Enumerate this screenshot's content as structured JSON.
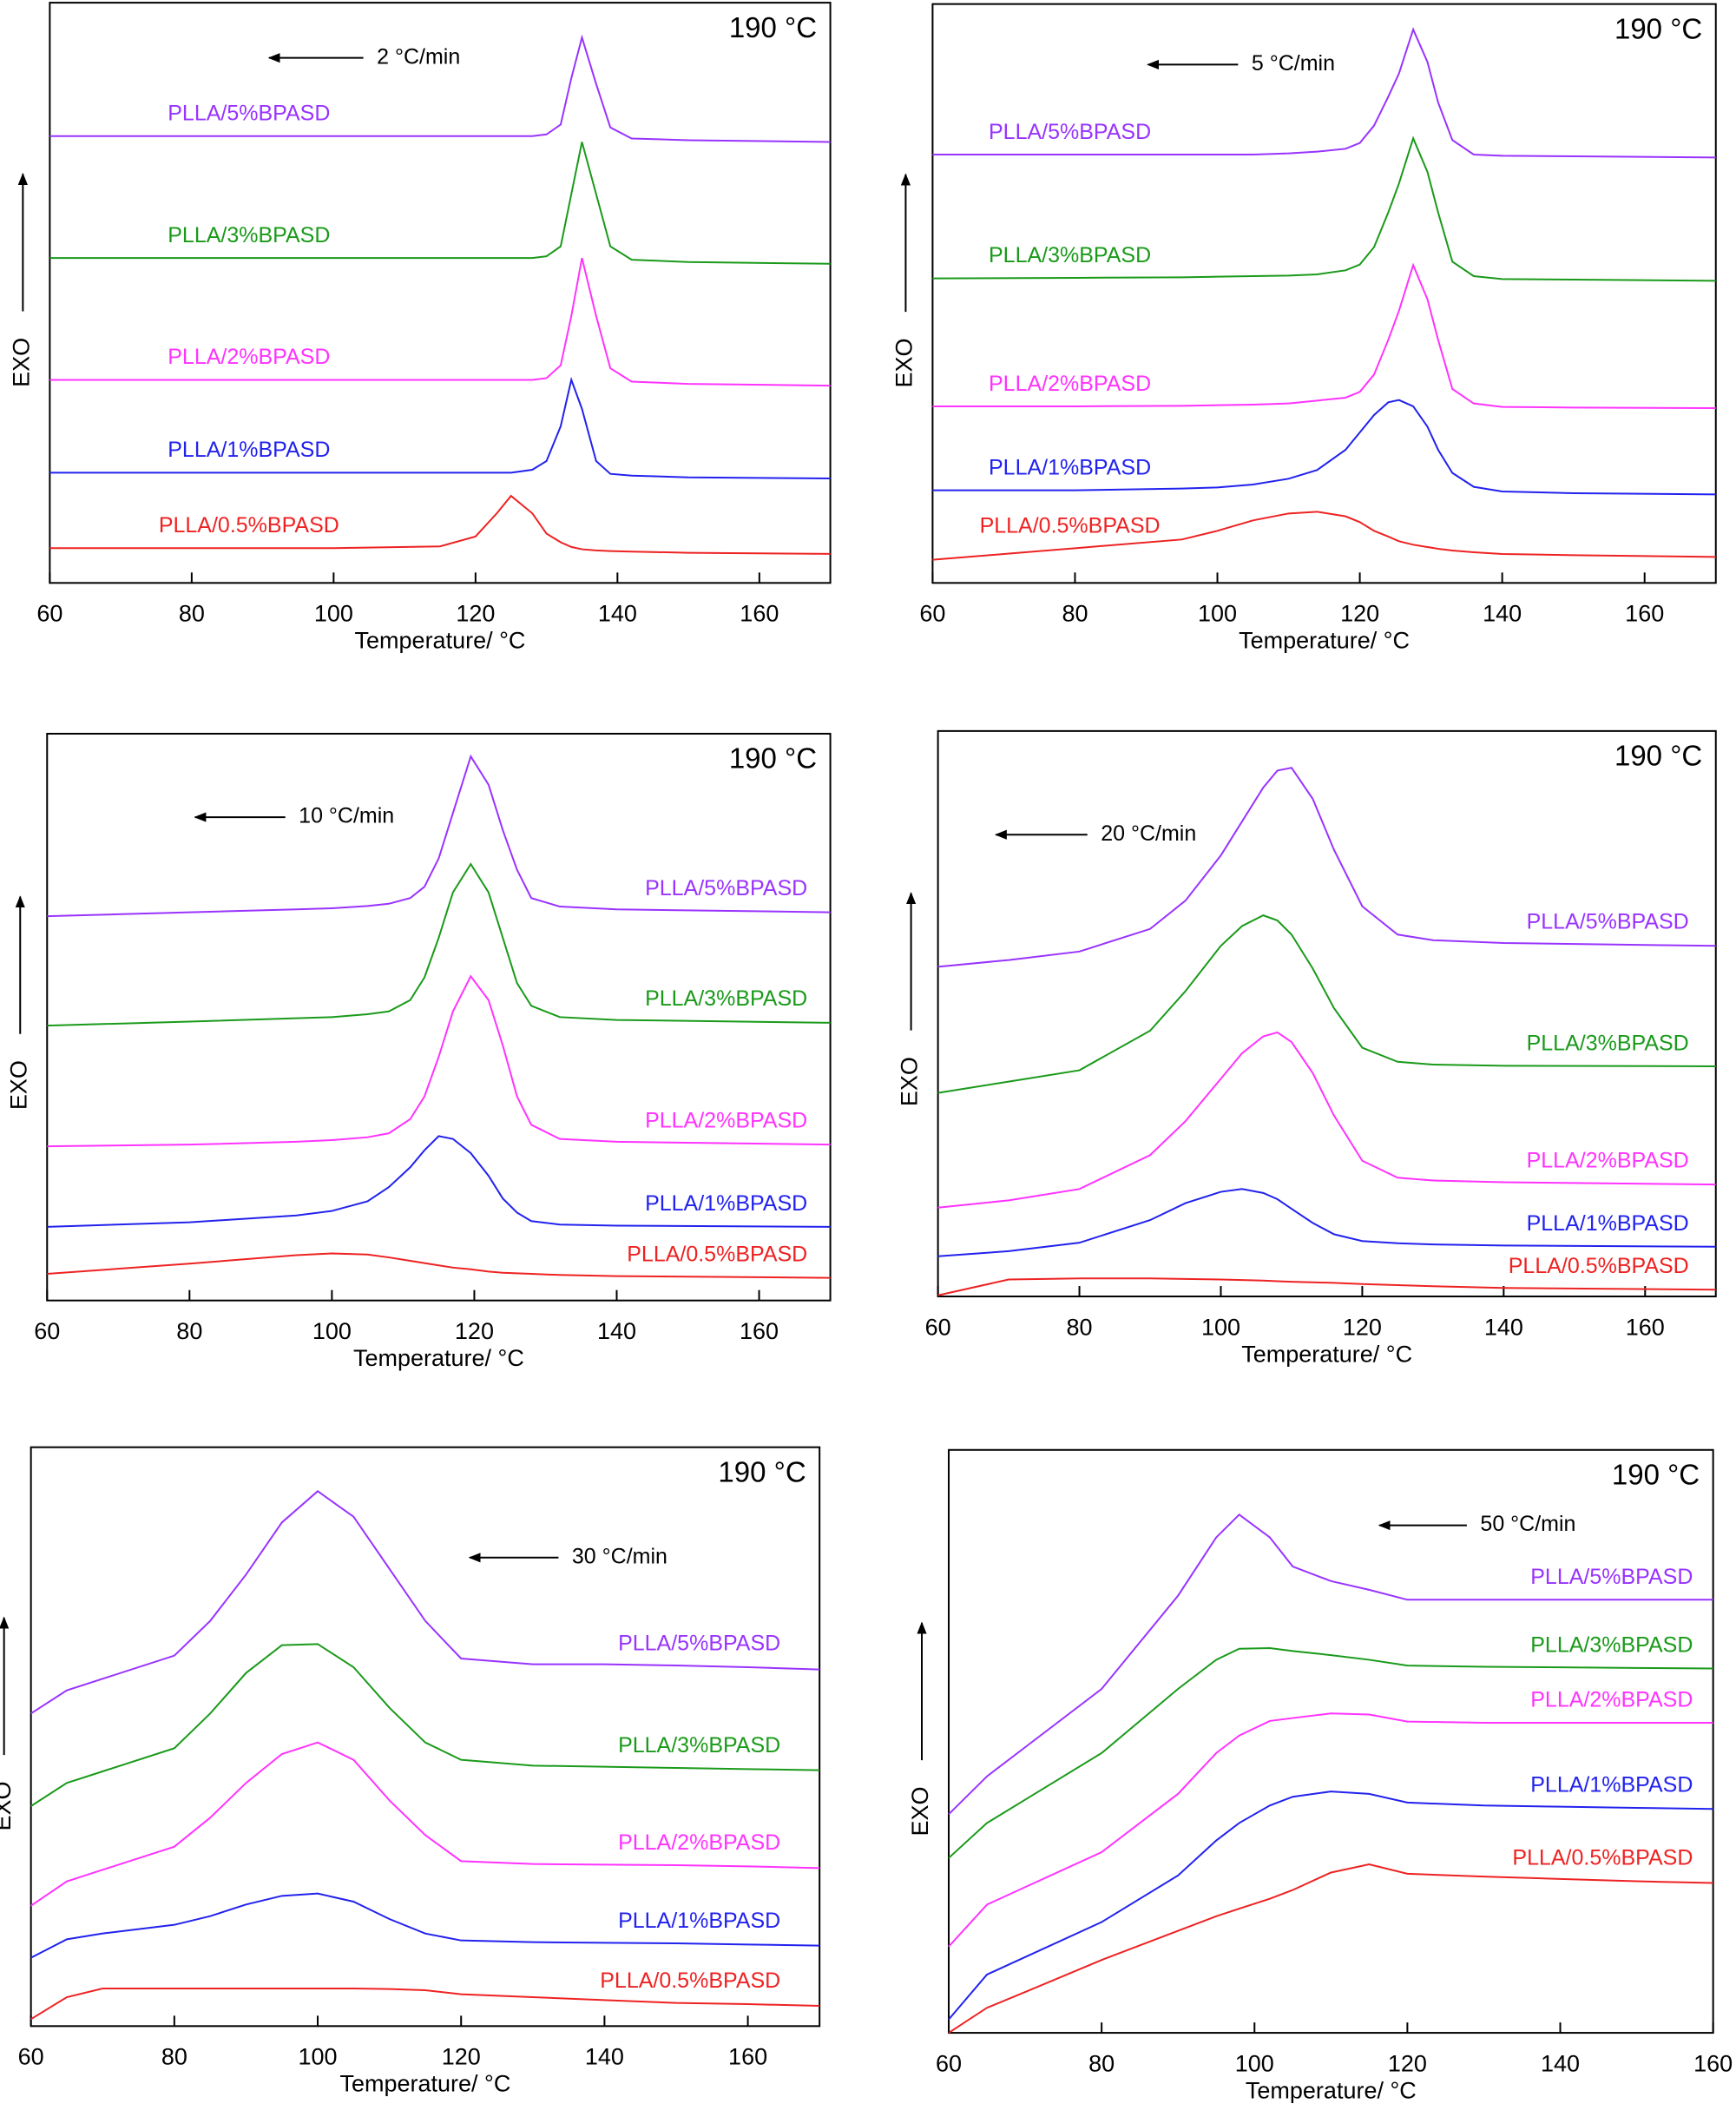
{
  "chart_data": [
    {
      "type": "line",
      "title": "190 °C",
      "annotation": "2 °C/min",
      "xlabel": "Temperature/ °C",
      "ylabel": "EXO",
      "xlim": [
        60,
        170
      ],
      "xticks": [
        60,
        80,
        100,
        120,
        140,
        160
      ],
      "ylim": [
        0,
        100
      ],
      "x": [
        60,
        80,
        100,
        115,
        120,
        123,
        125,
        128,
        130,
        132,
        133.5,
        135,
        137,
        139,
        142,
        150,
        170
      ],
      "series": [
        {
          "name": "PLLA/5%BPASD",
          "color": "#9933ff",
          "values": [
            77,
            77,
            77,
            77,
            77,
            77,
            77,
            77,
            77.3,
            79,
            87,
            94,
            86,
            78.5,
            76.6,
            76.3,
            76
          ]
        },
        {
          "name": "PLLA/3%BPASD",
          "color": "#1a9a1a",
          "values": [
            56,
            56,
            56,
            56,
            56,
            56,
            56,
            56,
            56.3,
            58,
            67,
            76,
            67,
            58,
            55.7,
            55.3,
            55
          ]
        },
        {
          "name": "PLLA/2%BPASD",
          "color": "#ff33ff",
          "values": [
            35,
            35,
            35,
            35,
            35,
            35,
            35,
            35,
            35.3,
            37.5,
            46,
            56,
            46,
            37,
            34.7,
            34.3,
            34
          ]
        },
        {
          "name": "PLLA/1%BPASD",
          "color": "#2222ee",
          "values": [
            19,
            19,
            19,
            19,
            19,
            19,
            19,
            19.5,
            21,
            27,
            35,
            30,
            21,
            18.8,
            18.5,
            18.2,
            18
          ]
        },
        {
          "name": "PLLA/0.5%BPASD",
          "color": "#ee2222",
          "values": [
            6,
            6,
            6,
            6.3,
            8,
            12,
            15,
            12,
            8.5,
            7,
            6.2,
            5.8,
            5.6,
            5.5,
            5.4,
            5.2,
            5
          ]
        }
      ]
    },
    {
      "type": "line",
      "title": "190 °C",
      "annotation": "5 °C/min",
      "xlabel": "Temperature/ °C",
      "ylabel": "EXO",
      "xlim": [
        60,
        170
      ],
      "xticks": [
        60,
        80,
        100,
        120,
        140,
        160
      ],
      "ylim": [
        0,
        100
      ],
      "x": [
        60,
        80,
        95,
        100,
        105,
        110,
        114,
        118,
        120,
        122,
        124,
        125.5,
        127.5,
        129.5,
        131,
        133,
        136,
        140,
        150,
        170
      ],
      "series": [
        {
          "name": "PLLA/5%BPASD",
          "color": "#9933ff",
          "values": [
            74,
            74,
            74,
            74,
            74,
            74.2,
            74.5,
            75,
            76,
            79,
            84,
            88,
            95.6,
            90,
            83,
            76.5,
            74,
            73.8,
            73.7,
            73.5
          ]
        },
        {
          "name": "PLLA/3%BPASD",
          "color": "#1a9a1a",
          "values": [
            52.6,
            52.7,
            52.8,
            52.9,
            53,
            53.1,
            53.3,
            54,
            55,
            58,
            64,
            69,
            76.8,
            71,
            64,
            55.5,
            53,
            52.5,
            52.4,
            52.2
          ]
        },
        {
          "name": "PLLA/2%BPASD",
          "color": "#ff33ff",
          "values": [
            30.5,
            30.5,
            30.6,
            30.7,
            30.8,
            31,
            31.5,
            32,
            33,
            36,
            42,
            47,
            54.9,
            49,
            42,
            33.5,
            31,
            30.4,
            30.3,
            30.2
          ]
        },
        {
          "name": "PLLA/1%BPASD",
          "color": "#2222ee",
          "values": [
            16,
            16,
            16.3,
            16.5,
            17,
            18,
            19.5,
            23,
            26,
            29,
            31.2,
            31.6,
            30.5,
            27,
            23,
            19,
            16.6,
            15.8,
            15.5,
            15.3
          ]
        },
        {
          "name": "PLLA/0.5%BPASD",
          "color": "#ee2222",
          "values": [
            4,
            6,
            7.5,
            9,
            10.8,
            12,
            12.3,
            11.5,
            10.5,
            9,
            8,
            7.2,
            6.6,
            6.2,
            5.9,
            5.6,
            5.3,
            5,
            4.8,
            4.5
          ]
        }
      ]
    },
    {
      "type": "line",
      "title": "190 °C",
      "annotation": "10 °C/min",
      "xlabel": "Temperature/ °C",
      "ylabel": "EXO",
      "xlim": [
        60,
        170
      ],
      "xticks": [
        60,
        80,
        100,
        120,
        140,
        160
      ],
      "ylim": [
        0,
        100
      ],
      "x": [
        60,
        80,
        95,
        100,
        105,
        108,
        111,
        113,
        115,
        117,
        119.5,
        122,
        124,
        126,
        128,
        132,
        140,
        170
      ],
      "series": [
        {
          "name": "PLLA/5%BPASD",
          "color": "#9933ff",
          "values": [
            67.8,
            68.5,
            69,
            69.2,
            69.6,
            70,
            71,
            73,
            78,
            86,
            96,
            91,
            83,
            76,
            71,
            69.5,
            69,
            68.5
          ]
        },
        {
          "name": "PLLA/3%BPASD",
          "color": "#1a9a1a",
          "values": [
            48.5,
            49.2,
            49.8,
            50,
            50.5,
            51,
            53,
            57,
            64,
            72,
            77,
            72,
            64,
            56,
            52,
            50,
            49.5,
            49
          ]
        },
        {
          "name": "PLLA/2%BPASD",
          "color": "#ff33ff",
          "values": [
            27.2,
            27.5,
            28,
            28.3,
            28.8,
            29.5,
            32,
            36,
            43,
            51,
            57.2,
            53,
            45,
            36,
            31,
            28.5,
            28,
            27.5
          ]
        },
        {
          "name": "PLLA/1%BPASD",
          "color": "#2222ee",
          "values": [
            13,
            13.8,
            15,
            15.8,
            17.5,
            20,
            23.5,
            26.5,
            29,
            28.5,
            26,
            22,
            18,
            15.5,
            14,
            13.4,
            13.2,
            13
          ]
        },
        {
          "name": "PLLA/0.5%BPASD",
          "color": "#ee2222",
          "values": [
            4.7,
            6.5,
            8,
            8.3,
            8.1,
            7.6,
            7,
            6.6,
            6.2,
            5.8,
            5.5,
            5.1,
            4.9,
            4.8,
            4.7,
            4.5,
            4.3,
            4
          ]
        }
      ]
    },
    {
      "type": "line",
      "title": "190 °C",
      "annotation": "20 °C/min",
      "xlabel": "Temperature/ °C",
      "ylabel": "EXO",
      "xlim": [
        60,
        170
      ],
      "xticks": [
        60,
        80,
        100,
        120,
        140,
        160
      ],
      "ylim": [
        0,
        100
      ],
      "x": [
        60,
        70,
        80,
        90,
        95,
        100,
        103,
        106,
        108,
        110,
        113,
        116,
        120,
        125,
        130,
        140,
        170
      ],
      "series": [
        {
          "name": "PLLA/5%BPASD",
          "color": "#9933ff",
          "values": [
            58.3,
            59.5,
            61,
            65,
            70,
            78,
            84,
            90,
            93,
            93.5,
            88,
            79,
            69,
            64,
            63,
            62.5,
            62
          ]
        },
        {
          "name": "PLLA/3%BPASD",
          "color": "#1a9a1a",
          "values": [
            36,
            38,
            40,
            47,
            54,
            62,
            65.5,
            67.4,
            66.5,
            64,
            58,
            51,
            44,
            41.5,
            41,
            40.8,
            40.7
          ]
        },
        {
          "name": "PLLA/2%BPASD",
          "color": "#ff33ff",
          "values": [
            15.7,
            17,
            19,
            25,
            31,
            38.5,
            43,
            46,
            46.7,
            45,
            39.5,
            32,
            24,
            21,
            20.5,
            20.2,
            19.8
          ]
        },
        {
          "name": "PLLA/1%BPASD",
          "color": "#2222ee",
          "values": [
            7.1,
            8,
            9.5,
            13.5,
            16.5,
            18.5,
            19,
            18.3,
            17.2,
            15.5,
            13,
            11,
            9.8,
            9.4,
            9.2,
            9,
            8.8
          ]
        },
        {
          "name": "PLLA/0.5%BPASD",
          "color": "#ee2222",
          "values": [
            0.2,
            3,
            3.2,
            3.2,
            3.1,
            3,
            2.9,
            2.8,
            2.7,
            2.6,
            2.5,
            2.4,
            2.2,
            2,
            1.8,
            1.5,
            1.2
          ]
        }
      ]
    },
    {
      "type": "line",
      "title": "190 °C",
      "annotation": "30 °C/min",
      "xlabel": "Temperature/ °C",
      "ylabel": "EXO",
      "xlim": [
        60,
        170
      ],
      "xticks": [
        60,
        80,
        100,
        120,
        140,
        160
      ],
      "ylim": [
        0,
        100
      ],
      "x": [
        60,
        65,
        70,
        80,
        85,
        90,
        95,
        100,
        105,
        110,
        115,
        120,
        130,
        140,
        150,
        160,
        170
      ],
      "series": [
        {
          "name": "PLLA/5%BPASD",
          "color": "#9933ff",
          "values": [
            54,
            58,
            60,
            64,
            70,
            78,
            87,
            92.4,
            88,
            79,
            70,
            63.5,
            62.5,
            62.5,
            62.3,
            62,
            61.6
          ]
        },
        {
          "name": "PLLA/3%BPASD",
          "color": "#1a9a1a",
          "values": [
            38,
            42,
            44,
            48,
            54,
            61,
            65.8,
            66,
            62,
            55,
            49,
            46,
            45,
            44.8,
            44.6,
            44.4,
            44.2
          ]
        },
        {
          "name": "PLLA/2%BPASD",
          "color": "#ff33ff",
          "values": [
            20.8,
            25,
            27,
            31,
            36,
            42,
            47,
            49,
            46,
            39,
            33,
            28.5,
            28,
            27.9,
            27.8,
            27.6,
            27.3
          ]
        },
        {
          "name": "PLLA/1%BPASD",
          "color": "#2222ee",
          "values": [
            11.8,
            15,
            16,
            17.5,
            19,
            21,
            22.5,
            22.9,
            21.5,
            18.5,
            16,
            14.8,
            14.5,
            14.4,
            14.3,
            14.1,
            13.9
          ]
        },
        {
          "name": "PLLA/0.5%BPASD",
          "color": "#ee2222",
          "values": [
            1.2,
            5,
            6.5,
            6.5,
            6.5,
            6.5,
            6.5,
            6.5,
            6.5,
            6.4,
            6.2,
            5.5,
            5,
            4.5,
            4,
            3.8,
            3.5
          ]
        }
      ]
    },
    {
      "type": "line",
      "title": "190 °C",
      "annotation": "50 °C/min",
      "xlabel": "Temperature/ °C",
      "ylabel": "EXO",
      "xlim": [
        60,
        160
      ],
      "xticks": [
        60,
        80,
        100,
        120,
        140,
        160
      ],
      "ylim": [
        0,
        100
      ],
      "x": [
        60,
        65,
        70,
        80,
        90,
        95,
        98,
        102,
        105,
        110,
        115,
        120,
        130,
        140,
        150,
        160
      ],
      "series": [
        {
          "name": "PLLA/5%BPASD",
          "color": "#9933ff",
          "values": [
            37.5,
            44,
            49,
            59,
            75,
            85,
            88.9,
            85,
            80,
            77.5,
            76,
            74.3,
            74.3,
            74.3,
            74.3,
            74.3
          ]
        },
        {
          "name": "PLLA/3%BPASD",
          "color": "#1a9a1a",
          "values": [
            30,
            36,
            40,
            48,
            59,
            64,
            65.9,
            66,
            65.5,
            64.8,
            64,
            63,
            62.8,
            62.7,
            62.6,
            62.5
          ]
        },
        {
          "name": "PLLA/2%BPASD",
          "color": "#ff33ff",
          "values": [
            14.8,
            22,
            25,
            31,
            41,
            48,
            51,
            53.5,
            54,
            54.8,
            54.6,
            53.4,
            53.2,
            53.2,
            53.2,
            53.2
          ]
        },
        {
          "name": "PLLA/1%BPASD",
          "color": "#2222ee",
          "values": [
            2.3,
            10,
            13,
            19,
            27,
            33,
            36,
            39,
            40.5,
            41.4,
            41,
            39.5,
            39,
            38.8,
            38.6,
            38.4
          ]
        },
        {
          "name": "PLLA/0.5%BPASD",
          "color": "#ee2222",
          "values": [
            0,
            4.3,
            7,
            12.5,
            17.5,
            20,
            21.3,
            23,
            24.5,
            27.5,
            28.9,
            27.3,
            26.8,
            26.4,
            26,
            25.7
          ]
        }
      ]
    }
  ]
}
